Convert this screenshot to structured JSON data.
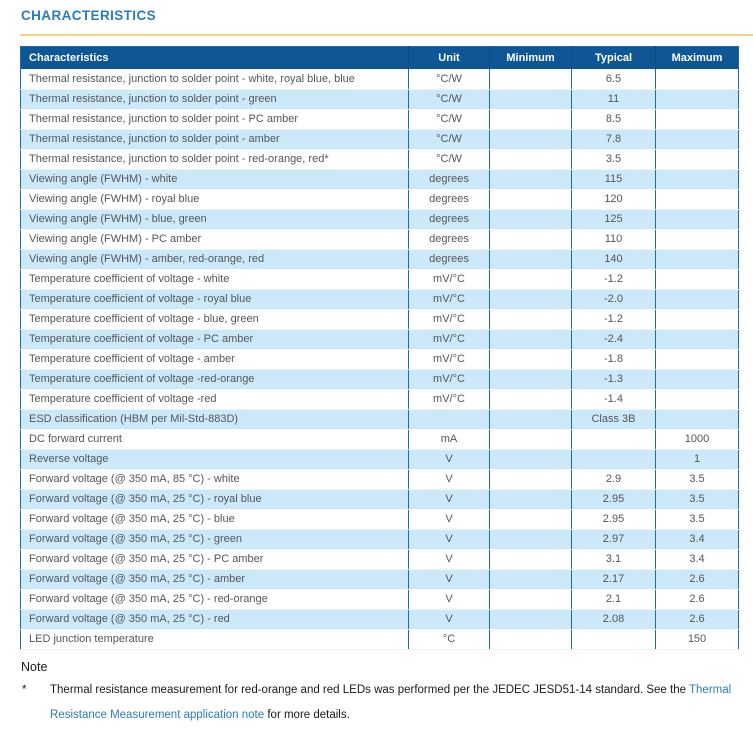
{
  "page": {
    "title": "CHARACTERISTICS"
  },
  "colors": {
    "title_blue": "#2b7cba",
    "gold_divider": "#f2d583",
    "header_bg": "#0f5794",
    "header_text": "#ffffff",
    "stripe_blue": "#cce9f9",
    "cell_text": "#55565a",
    "table_border": "#1b6aa9",
    "link_blue": "#2b7cba"
  },
  "table": {
    "columns": [
      "Characteristics",
      "Unit",
      "Minimum",
      "Typical",
      "Maximum"
    ],
    "column_keys": [
      "characteristics",
      "unit",
      "minimum",
      "typical",
      "maximum"
    ],
    "rows": [
      [
        "Thermal resistance, junction to solder point - white, royal blue, blue",
        "°C/W",
        "",
        "6.5",
        ""
      ],
      [
        "Thermal resistance, junction to solder point - green",
        "°C/W",
        "",
        "11",
        ""
      ],
      [
        "Thermal resistance, junction to solder point - PC amber",
        "°C/W",
        "",
        "8.5",
        ""
      ],
      [
        "Thermal resistance, junction to solder point - amber",
        "°C/W",
        "",
        "7.8",
        ""
      ],
      [
        "Thermal resistance, junction to solder point - red-orange, red*",
        "°C/W",
        "",
        "3.5",
        ""
      ],
      [
        "Viewing angle (FWHM) - white",
        "degrees",
        "",
        "115",
        ""
      ],
      [
        "Viewing angle (FWHM) - royal blue",
        "degrees",
        "",
        "120",
        ""
      ],
      [
        "Viewing angle (FWHM) - blue, green",
        "degrees",
        "",
        "125",
        ""
      ],
      [
        "Viewing angle (FWHM) - PC amber",
        "degrees",
        "",
        "110",
        ""
      ],
      [
        "Viewing angle (FWHM) - amber, red-orange, red",
        "degrees",
        "",
        "140",
        ""
      ],
      [
        "Temperature coefficient of voltage - white",
        "mV/°C",
        "",
        "-1.2",
        ""
      ],
      [
        "Temperature coefficient of voltage - royal blue",
        "mV/°C",
        "",
        "-2.0",
        ""
      ],
      [
        "Temperature coefficient of voltage - blue, green",
        "mV/°C",
        "",
        "-1.2",
        ""
      ],
      [
        "Temperature coefficient of voltage - PC amber",
        "mV/°C",
        "",
        "-2.4",
        ""
      ],
      [
        "Temperature coefficient of voltage - amber",
        "mV/°C",
        "",
        "-1.8",
        ""
      ],
      [
        "Temperature coefficient of voltage -red-orange",
        "mV/°C",
        "",
        "-1.3",
        ""
      ],
      [
        "Temperature coefficient of voltage -red",
        "mV/°C",
        "",
        "-1.4",
        ""
      ],
      [
        "ESD classification (HBM per Mil-Std-883D)",
        "",
        "",
        "Class 3B",
        ""
      ],
      [
        "DC forward current",
        "mA",
        "",
        "",
        "1000"
      ],
      [
        "Reverse voltage",
        "V",
        "",
        "",
        "1"
      ],
      [
        "Forward voltage (@ 350 mA, 85 °C) - white",
        "V",
        "",
        "2.9",
        "3.5"
      ],
      [
        "Forward voltage (@ 350 mA, 25 °C) - royal blue",
        "V",
        "",
        "2.95",
        "3.5"
      ],
      [
        "Forward voltage (@ 350 mA, 25 °C) - blue",
        "V",
        "",
        "2.95",
        "3.5"
      ],
      [
        "Forward voltage (@ 350 mA, 25 °C) - green",
        "V",
        "",
        "2.97",
        "3.4"
      ],
      [
        "Forward voltage (@ 350 mA, 25 °C) - PC amber",
        "V",
        "",
        "3.1",
        "3.4"
      ],
      [
        "Forward voltage (@ 350 mA, 25 °C) - amber",
        "V",
        "",
        "2.17",
        "2.6"
      ],
      [
        "Forward voltage (@ 350 mA, 25 °C) - red-orange",
        "V",
        "",
        "2.1",
        "2.6"
      ],
      [
        "Forward voltage (@ 350 mA, 25 °C) - red",
        "V",
        "",
        "2.08",
        "2.6"
      ],
      [
        "LED junction temperature",
        "°C",
        "",
        "",
        "150"
      ]
    ]
  },
  "note": {
    "heading": "Note",
    "marker": "*",
    "text_before_link": "Thermal resistance measurement for red-orange and red LEDs was performed per the JEDEC JESD51-14 standard. See the ",
    "link_text": "Thermal Resistance Measurement application note",
    "text_after_link": " for more details."
  }
}
